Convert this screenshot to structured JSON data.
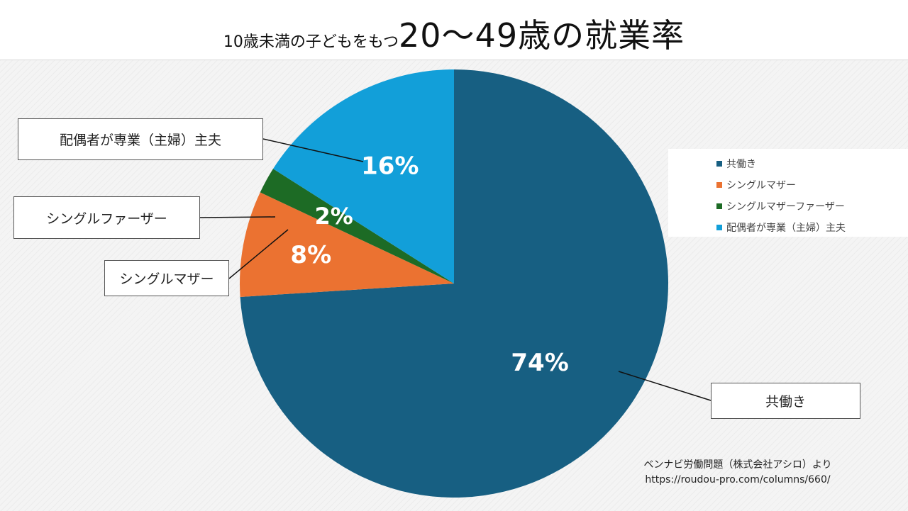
{
  "title": {
    "prefix": "10歳未満の子どもをもつ",
    "main": "20～49歳の就業率"
  },
  "chart_data": {
    "type": "pie",
    "title": "10歳未満の子どもをもつ20～49歳の就業率",
    "categories": [
      "共働き",
      "シングルマザー",
      "シングルマザーファーザー",
      "配偶者が専業（主婦）主夫"
    ],
    "values": [
      74,
      8,
      2,
      16
    ],
    "data_labels": [
      "74%",
      "8%",
      "2%",
      "16%"
    ],
    "colors": [
      "#175f82",
      "#eb7231",
      "#1d6b25",
      "#129fd9"
    ],
    "legend_position": "right",
    "start_angle_deg": 0,
    "direction": "clockwise"
  },
  "callouts": [
    "共働き",
    "シングルマザー",
    "シングルファーザー",
    "配偶者が専業（主婦）主夫"
  ],
  "legend": {
    "items": [
      {
        "label": "共働き",
        "color": "#175f82"
      },
      {
        "label": "シングルマザー",
        "color": "#eb7231"
      },
      {
        "label": "シングルマザーファーザー",
        "color": "#1d6b25"
      },
      {
        "label": "配偶者が専業（主婦）主夫",
        "color": "#129fd9"
      }
    ]
  },
  "source": {
    "line1": "ベンナビ労働問題（株式会社アシロ）より",
    "line2": "https://roudou-pro.com/columns/660/"
  }
}
